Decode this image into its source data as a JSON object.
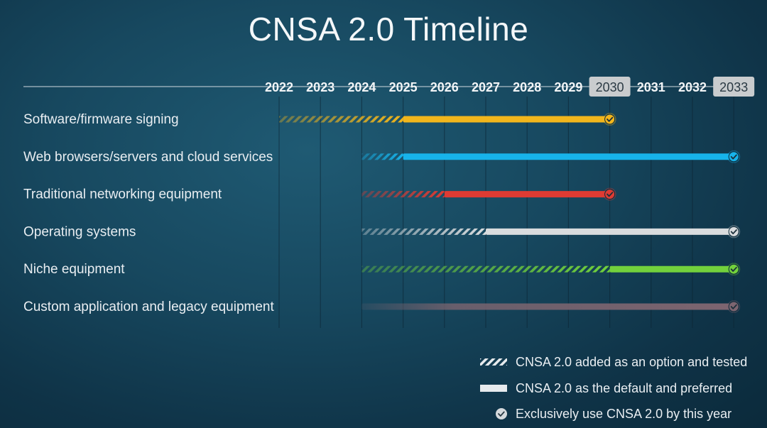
{
  "title": "CNSA 2.0 Timeline",
  "chart_data": {
    "type": "gantt",
    "years": [
      "2022",
      "2023",
      "2024",
      "2025",
      "2026",
      "2027",
      "2028",
      "2029",
      "2030",
      "2031",
      "2032",
      "2033"
    ],
    "highlighted_years": [
      "2030",
      "2033"
    ],
    "rows": [
      {
        "label": "Software/firmware signing",
        "color": "#f2b61c",
        "option_start": 2022,
        "preferred_start": 2025,
        "exclusive_by": 2030
      },
      {
        "label": "Web browsers/servers and cloud services",
        "color": "#17b3ea",
        "option_start": 2024,
        "preferred_start": 2025,
        "exclusive_by": 2033
      },
      {
        "label": "Traditional networking equipment",
        "color": "#de3b33",
        "option_start": 2024,
        "preferred_start": 2026,
        "exclusive_by": 2030
      },
      {
        "label": "Operating systems",
        "color": "#d9dcde",
        "option_start": 2024,
        "preferred_start": 2027,
        "exclusive_by": 2033
      },
      {
        "label": "Niche equipment",
        "color": "#72d13c",
        "option_start": 2024,
        "preferred_start": 2030,
        "exclusive_by": 2033
      },
      {
        "label": "Custom application and legacy equipment",
        "color": "#7d6570",
        "option_start": 2024,
        "preferred_start": 2024,
        "exclusive_by": 2033
      }
    ],
    "legend": [
      {
        "symbol": "hatched",
        "label": "CNSA 2.0 added as an option and tested"
      },
      {
        "symbol": "solid",
        "label": "CNSA 2.0 as the default and preferred"
      },
      {
        "symbol": "check",
        "label": "Exclusively use CNSA 2.0 by this year"
      }
    ]
  }
}
